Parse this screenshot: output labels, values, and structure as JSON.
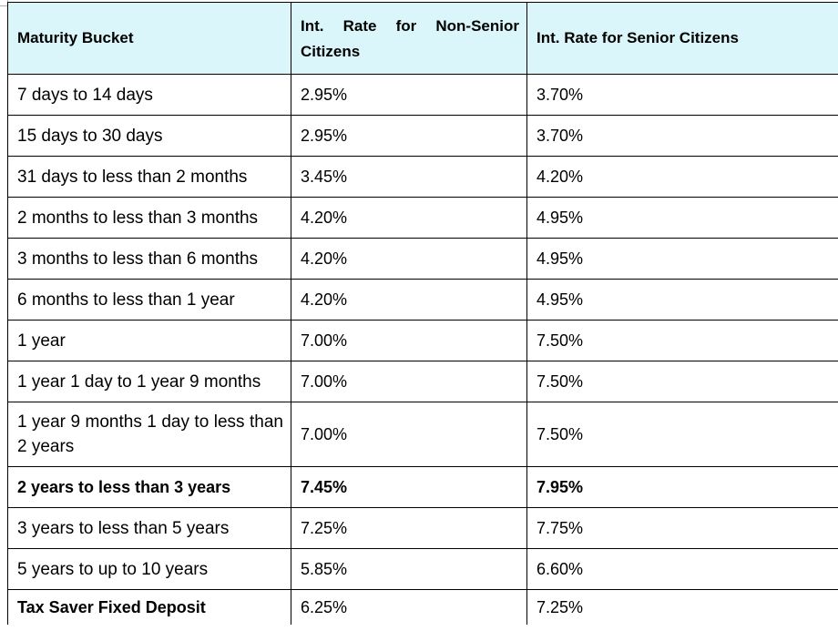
{
  "table": {
    "headers": [
      "Maturity Bucket",
      "Int. Rate for Non-Senior Citizens",
      "Int. Rate for Senior Citizens"
    ],
    "rows": [
      [
        "7 days to 14 days",
        "2.95%",
        "3.70%"
      ],
      [
        "15 days to 30 days",
        "2.95%",
        "3.70%"
      ],
      [
        "31 days to less than 2 months",
        "3.45%",
        "4.20%"
      ],
      [
        "2 months to less than 3 months",
        "4.20%",
        "4.95%"
      ],
      [
        "3 months to less than 6 months",
        "4.20%",
        "4.95%"
      ],
      [
        "6 months to less than 1 year",
        "4.20%",
        "4.95%"
      ],
      [
        "1 year",
        "7.00%",
        "7.50%"
      ],
      [
        "1 year 1 day to 1 year 9 months",
        "7.00%",
        "7.50%"
      ],
      [
        "1 year 9 months 1 day to less than 2 years",
        "7.00%",
        "7.50%"
      ],
      [
        "2 years to less than 3 years",
        "7.45%",
        "7.95%"
      ],
      [
        "3 years to less than 5 years",
        "7.25%",
        "7.75%"
      ],
      [
        "5 years to up to 10 years",
        "5.85%",
        "6.60%"
      ],
      [
        "Tax Saver Fixed Deposit",
        "6.25%",
        "7.25%"
      ]
    ]
  },
  "colors": {
    "header_background": "#daf6fa",
    "border": "#000000",
    "text": "#000000"
  }
}
